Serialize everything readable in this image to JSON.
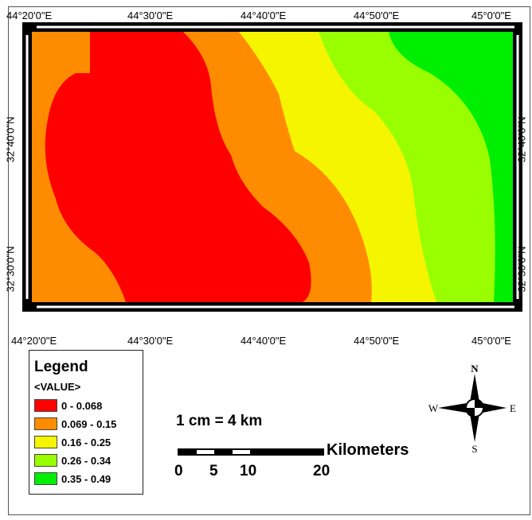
{
  "map": {
    "top_lon_labels": [
      "44°20'0\"E",
      "44°30'0\"E",
      "44°40'0\"E",
      "44°50'0\"E",
      "45°0'0\"E"
    ],
    "bottom_lon_labels": [
      "44°20'0\"E",
      "44°30'0\"E",
      "44°40'0\"E",
      "44°50'0\"E",
      "45°0'0\"E"
    ],
    "left_lat_labels": [
      "32°40'0\"N",
      "32°30'0\"N"
    ],
    "right_lat_labels": [
      "32°40'0\"N",
      "32°30'0\"N"
    ]
  },
  "legend": {
    "title": "Legend",
    "field": "<VALUE>",
    "classes": [
      {
        "label": "0 - 0.068",
        "color": "#ff0000"
      },
      {
        "label": "0.069 - 0.15",
        "color": "#ff8c00"
      },
      {
        "label": "0.16 - 0.25",
        "color": "#f5f500"
      },
      {
        "label": "0.26 - 0.34",
        "color": "#99ff00"
      },
      {
        "label": "0.35 - 0.49",
        "color": "#00ee00"
      }
    ]
  },
  "scale": {
    "ratio_text": "1 cm = 4 km",
    "unit": "Kilometers",
    "ticks": [
      "0",
      "5",
      "10",
      "20"
    ]
  },
  "north_arrow": {
    "n": "N",
    "s": "S",
    "e": "E",
    "w": "W"
  }
}
